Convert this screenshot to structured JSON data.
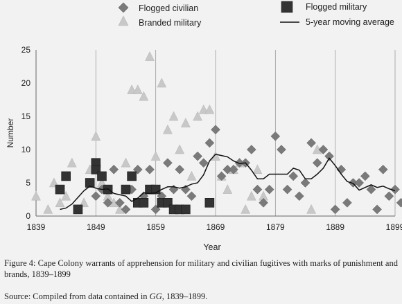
{
  "chart_data": {
    "type": "scatter",
    "xlabel": "Year",
    "ylabel": "Number",
    "xlim": [
      1839,
      1899
    ],
    "ylim": [
      0,
      25
    ],
    "x_ticks": [
      "1839",
      "1849",
      "1859",
      "1869",
      "1879",
      "1889",
      "1899"
    ],
    "y_ticks": [
      "0",
      "5",
      "10",
      "15",
      "20",
      "25"
    ],
    "grid": "vertical",
    "legend_position": "top",
    "series": [
      {
        "name": "Flogged civilian",
        "marker": "diamond",
        "color": "#7a7a7a",
        "points": [
          [
            1849,
            3
          ],
          [
            1850,
            4
          ],
          [
            1851,
            2
          ],
          [
            1852,
            7
          ],
          [
            1853,
            2
          ],
          [
            1854,
            1
          ],
          [
            1855,
            4
          ],
          [
            1856,
            7
          ],
          [
            1857,
            3
          ],
          [
            1858,
            7
          ],
          [
            1859,
            1
          ],
          [
            1860,
            3
          ],
          [
            1861,
            8
          ],
          [
            1862,
            4
          ],
          [
            1863,
            7
          ],
          [
            1864,
            4
          ],
          [
            1865,
            3
          ],
          [
            1866,
            9
          ],
          [
            1867,
            8
          ],
          [
            1868,
            11
          ],
          [
            1869,
            13
          ],
          [
            1870,
            6
          ],
          [
            1871,
            7
          ],
          [
            1872,
            7
          ],
          [
            1873,
            8
          ],
          [
            1874,
            8
          ],
          [
            1875,
            10
          ],
          [
            1876,
            4
          ],
          [
            1877,
            2
          ],
          [
            1878,
            4
          ],
          [
            1879,
            12
          ],
          [
            1880,
            10
          ],
          [
            1881,
            4
          ],
          [
            1882,
            6
          ],
          [
            1883,
            3
          ],
          [
            1884,
            5
          ],
          [
            1885,
            11
          ],
          [
            1886,
            8
          ],
          [
            1887,
            10
          ],
          [
            1888,
            9
          ],
          [
            1889,
            1
          ],
          [
            1890,
            7
          ],
          [
            1891,
            2
          ],
          [
            1892,
            5
          ],
          [
            1893,
            5
          ],
          [
            1894,
            6
          ],
          [
            1895,
            4
          ],
          [
            1896,
            1
          ],
          [
            1897,
            7
          ],
          [
            1898,
            3
          ],
          [
            1899,
            4
          ],
          [
            1900,
            2
          ]
        ]
      },
      {
        "name": "Branded military",
        "marker": "triangle",
        "color": "#c8c8c8",
        "points": [
          [
            1839,
            3
          ],
          [
            1841,
            1
          ],
          [
            1842,
            5
          ],
          [
            1843,
            2
          ],
          [
            1844,
            3
          ],
          [
            1845,
            8
          ],
          [
            1846,
            1
          ],
          [
            1847,
            2
          ],
          [
            1848,
            7
          ],
          [
            1849,
            12
          ],
          [
            1850,
            5
          ],
          [
            1851,
            3
          ],
          [
            1852,
            2
          ],
          [
            1853,
            1
          ],
          [
            1854,
            8
          ],
          [
            1855,
            19
          ],
          [
            1856,
            19
          ],
          [
            1857,
            18
          ],
          [
            1858,
            24
          ],
          [
            1859,
            9
          ],
          [
            1860,
            20
          ],
          [
            1861,
            13
          ],
          [
            1862,
            15
          ],
          [
            1863,
            10
          ],
          [
            1864,
            14
          ],
          [
            1865,
            6
          ],
          [
            1866,
            15
          ],
          [
            1867,
            16
          ],
          [
            1868,
            16
          ],
          [
            1869,
            9
          ],
          [
            1870,
            6
          ],
          [
            1871,
            4
          ],
          [
            1872,
            7
          ],
          [
            1873,
            8
          ],
          [
            1874,
            1
          ],
          [
            1875,
            3
          ],
          [
            1876,
            7
          ],
          [
            1877,
            3
          ],
          [
            1885,
            1
          ],
          [
            1886,
            10
          ]
        ]
      },
      {
        "name": "Flogged military",
        "marker": "square",
        "color": "#333333",
        "points": [
          [
            1843,
            4
          ],
          [
            1844,
            6
          ],
          [
            1846,
            1
          ],
          [
            1848,
            5
          ],
          [
            1849,
            8
          ],
          [
            1849,
            7
          ],
          [
            1850,
            6
          ],
          [
            1851,
            4
          ],
          [
            1854,
            4
          ],
          [
            1855,
            6
          ],
          [
            1856,
            2
          ],
          [
            1857,
            2
          ],
          [
            1858,
            4
          ],
          [
            1859,
            4
          ],
          [
            1860,
            2
          ],
          [
            1861,
            2
          ],
          [
            1862,
            1
          ],
          [
            1863,
            1
          ],
          [
            1864,
            1
          ],
          [
            1868,
            2
          ]
        ]
      }
    ],
    "line_series": {
      "name": "5-year moving average",
      "color": "#111111",
      "points": [
        [
          1843,
          1
        ],
        [
          1844,
          1.2
        ],
        [
          1845,
          1.8
        ],
        [
          1846,
          2.8
        ],
        [
          1847,
          3.8
        ],
        [
          1848,
          4.5
        ],
        [
          1849,
          4.2
        ],
        [
          1850,
          4
        ],
        [
          1851,
          4.1
        ],
        [
          1852,
          3.4
        ],
        [
          1853,
          3.2
        ],
        [
          1854,
          3
        ],
        [
          1855,
          2.2
        ],
        [
          1856,
          2.7
        ],
        [
          1857,
          3.5
        ],
        [
          1858,
          3.4
        ],
        [
          1859,
          3.5
        ],
        [
          1860,
          4
        ],
        [
          1861,
          4.4
        ],
        [
          1862,
          4.4
        ],
        [
          1863,
          4.2
        ],
        [
          1864,
          4.4
        ],
        [
          1865,
          4.8
        ],
        [
          1866,
          5
        ],
        [
          1867,
          6.2
        ],
        [
          1868,
          8.3
        ],
        [
          1869,
          9.3
        ],
        [
          1870,
          9.1
        ],
        [
          1871,
          8.9
        ],
        [
          1872,
          8.3
        ],
        [
          1873,
          7.9
        ],
        [
          1874,
          8
        ],
        [
          1875,
          6.9
        ],
        [
          1876,
          5.6
        ],
        [
          1877,
          5.6
        ],
        [
          1878,
          6.3
        ],
        [
          1879,
          6.3
        ],
        [
          1880,
          6.3
        ],
        [
          1881,
          6.3
        ],
        [
          1882,
          7.2
        ],
        [
          1883,
          6.9
        ],
        [
          1884,
          5.6
        ],
        [
          1885,
          5.6
        ],
        [
          1886,
          6.3
        ],
        [
          1887,
          7.2
        ],
        [
          1888,
          8.7
        ],
        [
          1889,
          7.6
        ],
        [
          1890,
          6.3
        ],
        [
          1891,
          5.2
        ],
        [
          1892,
          4.9
        ],
        [
          1893,
          3.9
        ],
        [
          1894,
          4.3
        ],
        [
          1895,
          4.7
        ],
        [
          1896,
          4.3
        ],
        [
          1897,
          4.5
        ],
        [
          1898,
          4.1
        ],
        [
          1899,
          3.8
        ]
      ]
    }
  },
  "caption": {
    "text": "Figure 4: Cape Colony warrants of apprehension for military and civilian fugitives with marks of punishment and brands, 1839–1899",
    "source_prefix": "Source: Compiled from data contained in ",
    "source_italic": "GG",
    "source_suffix": ", 1839–1899."
  }
}
